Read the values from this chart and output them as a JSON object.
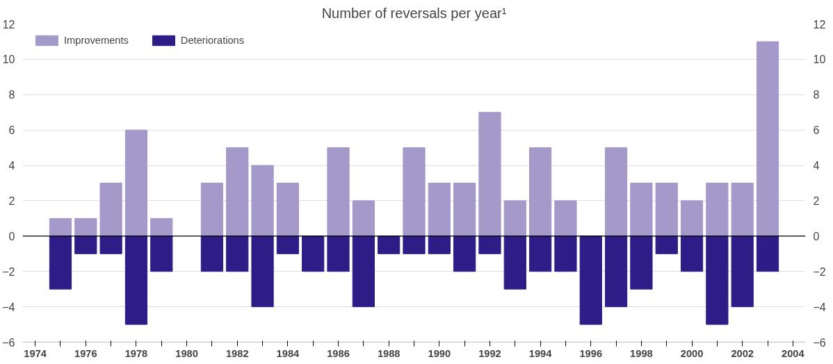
{
  "chart_data": {
    "type": "bar",
    "title": "Number of reversals per year¹",
    "categories": [
      "1974",
      null,
      "1976",
      null,
      "1978",
      null,
      "1980",
      null,
      "1982",
      null,
      "1984",
      null,
      "1986",
      null,
      "1988",
      null,
      "1990",
      null,
      "1992",
      null,
      "1994",
      null,
      "1996",
      null,
      "1998",
      null,
      "2000",
      null,
      "2002",
      null,
      "2004"
    ],
    "series": [
      {
        "name": "Improvements",
        "color": "#a599c9",
        "values": [
          null,
          1,
          1,
          3,
          6,
          1,
          null,
          3,
          5,
          4,
          3,
          null,
          5,
          2,
          null,
          5,
          3,
          3,
          7,
          2,
          5,
          2,
          null,
          5,
          3,
          3,
          2,
          3,
          3,
          11,
          null
        ]
      },
      {
        "name": "Deteriorations",
        "color": "#2e1c87",
        "values": [
          null,
          -3,
          -1,
          -1,
          -5,
          -2,
          null,
          -2,
          -2,
          -4,
          -1,
          -2,
          -2,
          -4,
          -1,
          -1,
          -1,
          -2,
          -1,
          -3,
          -2,
          -2,
          -5,
          -4,
          -3,
          -1,
          -2,
          -5,
          -4,
          -2,
          null
        ]
      }
    ],
    "ylim": [
      -6,
      12
    ],
    "yticks": [
      -6,
      -4,
      -2,
      0,
      2,
      4,
      6,
      8,
      10,
      12
    ],
    "y2lim": [
      -6,
      12
    ],
    "y2ticks": [
      -6,
      -4,
      -2,
      0,
      2,
      4,
      6,
      8,
      10,
      12
    ],
    "ref_lines": [
      {
        "axis": "y",
        "value": 0,
        "color": "#000000"
      }
    ],
    "grid": "y",
    "legend": "top left",
    "stacked": true
  }
}
